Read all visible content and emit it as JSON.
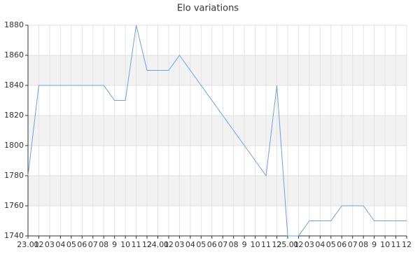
{
  "chart_data": {
    "type": "line",
    "title": "Elo variations",
    "categories": [
      "23.01",
      "02",
      "03",
      "04",
      "05",
      "06",
      "07",
      "08",
      "9",
      "10",
      "11",
      "12",
      "24.01",
      "02",
      "03",
      "04",
      "05",
      "06",
      "07",
      "08",
      "9",
      "10",
      "11",
      "12",
      "25.01",
      "02",
      "03",
      "04",
      "05",
      "06",
      "07",
      "08",
      "9",
      "10",
      "11",
      "12"
    ],
    "series": [
      {
        "name": "Elo",
        "color": "#6f9fe6",
        "values": [
          1780,
          1840,
          1840,
          1840,
          1840,
          1840,
          1840,
          1840,
          1830,
          1830,
          1880,
          1850,
          1850,
          1850,
          1860,
          1850,
          1840,
          1830,
          1820,
          1810,
          1800,
          1790,
          1780,
          1840,
          1740,
          1740,
          1750,
          1750,
          1750,
          1760,
          1760,
          1760,
          1750,
          1750,
          1750,
          1750
        ]
      }
    ],
    "ylim": [
      1740,
      1880
    ],
    "yticks": [
      1740,
      1760,
      1780,
      1800,
      1820,
      1840,
      1860,
      1880
    ],
    "grid": true
  }
}
